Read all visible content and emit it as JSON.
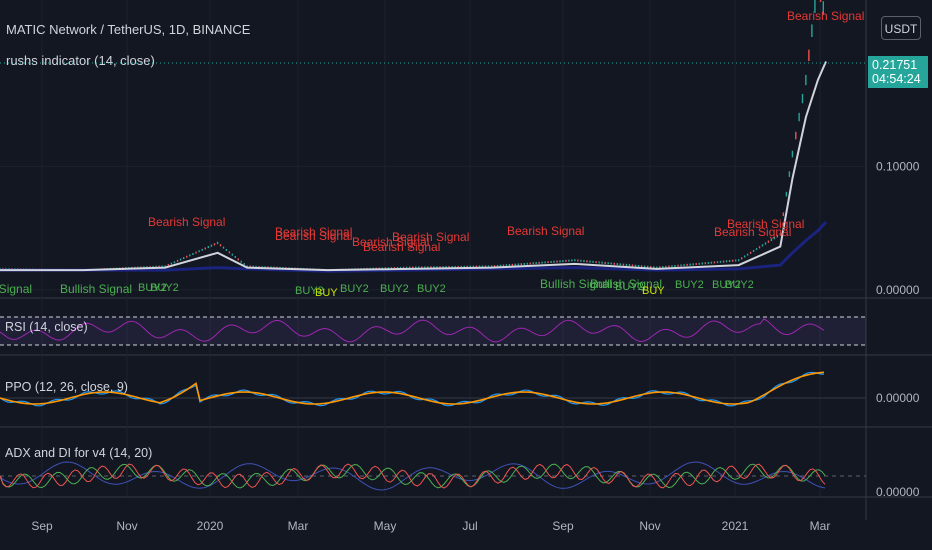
{
  "header": {
    "symbol_line": "MATIC Network / TetherUS, 1D, BINANCE",
    "indicator_line": "rushs indicator (14, close)"
  },
  "currency_button": "USDT",
  "last_price": {
    "value": "0.21751",
    "countdown": "04:54:24"
  },
  "panes": {
    "rsi_label": "RSI (14, close)",
    "ppo_label": "PPO (12, 26, close, 9)",
    "adx_label": "ADX and DI for v4 (14, 20)"
  },
  "colors": {
    "background": "#131722",
    "up": "#26a69a",
    "down": "#ef5350",
    "bearish": "#e53935",
    "bullish": "#4caf50",
    "buy": "#c8e600",
    "rsi": "#9c27b0",
    "ppo": "#2196f3",
    "ppo_signal": "#ff9800",
    "adx": "#3f51b5"
  },
  "chart_data": [
    {
      "type": "line",
      "title": "MATIC Network / TetherUS, 1D, BINANCE",
      "x_ticks": [
        "Sep",
        "Nov",
        "2020",
        "Mar",
        "May",
        "Jul",
        "Sep",
        "Nov",
        "2021",
        "Mar"
      ],
      "y_ticks": [
        "0.00000",
        "0.10000"
      ],
      "ylim": [
        -0.005,
        0.23
      ],
      "x_dates": [
        "2019-07",
        "2019-09",
        "2019-11",
        "2019-12-10",
        "2020-01",
        "2020-03",
        "2020-05",
        "2020-07",
        "2020-09",
        "2020-11",
        "2021-01",
        "2021-02-01",
        "2021-02-10",
        "2021-02-20",
        "2021-03-01",
        "2021-03-07"
      ],
      "series": [
        {
          "values": [
            0.017,
            0.016,
            0.019,
            0.038,
            0.019,
            0.016,
            0.018,
            0.019,
            0.024,
            0.018,
            0.024,
            0.045,
            0.11,
            0.17,
            0.25,
            0.2175
          ]
        }
      ],
      "ma_fast": [
        0.016,
        0.016,
        0.018,
        0.03,
        0.018,
        0.016,
        0.017,
        0.018,
        0.021,
        0.017,
        0.02,
        0.035,
        0.09,
        0.14,
        0.17,
        0.185
      ],
      "ma_slow": [
        0.016,
        0.016,
        0.016,
        0.018,
        0.017,
        0.015,
        0.016,
        0.017,
        0.018,
        0.016,
        0.017,
        0.02,
        0.03,
        0.04,
        0.048,
        0.055
      ],
      "annotations": {
        "bearish": "Bearish Signal",
        "bullish": "Bullish Signal",
        "buy": "BUY",
        "buy2": "BUY2"
      }
    },
    {
      "type": "line",
      "title": "RSI (14, close)"
    },
    {
      "type": "line",
      "title": "PPO (12, 26, close, 9)",
      "y_ticks": [
        "0.00000"
      ]
    },
    {
      "type": "line",
      "title": "ADX and DI for v4 (14, 20)",
      "y_ticks": [
        "0.00000"
      ]
    }
  ]
}
